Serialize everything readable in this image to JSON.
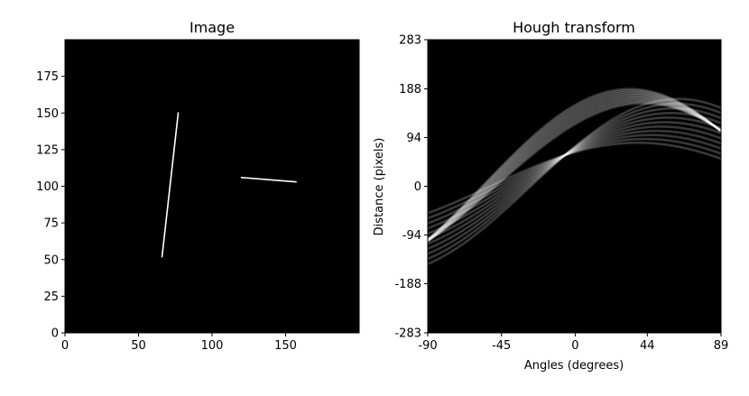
{
  "chart_data": [
    {
      "type": "image",
      "title": "Image",
      "xlabel": "",
      "ylabel": "",
      "xlim": [
        0,
        200
      ],
      "ylim": [
        0,
        200
      ],
      "xticks": [
        0,
        50,
        100,
        150
      ],
      "yticks": [
        0,
        25,
        50,
        75,
        100,
        125,
        150,
        175
      ],
      "background": "#000000",
      "foreground": "#ffffff",
      "segments": [
        {
          "name": "steep-line",
          "x1": 66,
          "y1": 52,
          "x2": 77,
          "y2": 150
        },
        {
          "name": "flat-line",
          "x1": 120,
          "y1": 106,
          "x2": 157,
          "y2": 103
        }
      ]
    },
    {
      "type": "heatmap",
      "title": "Hough transform",
      "xlabel": "Angles (degrees)",
      "ylabel": "Distance (pixels)",
      "xlim": [
        -90,
        89
      ],
      "ylim": [
        -283,
        283
      ],
      "xticks": [
        -90,
        -45,
        0,
        44,
        89
      ],
      "yticks": [
        -283,
        -188,
        -94,
        0,
        94,
        188,
        283
      ],
      "background": "#000000",
      "bands": [
        {
          "name": "steep-line-band",
          "x_from": 66,
          "x_to": 77,
          "y_from": 52,
          "y_to": 150
        },
        {
          "name": "flat-line-band",
          "x_from": 120,
          "x_to": 157,
          "y_from": 106,
          "y_to": 103
        }
      ],
      "curves_per_band": 11
    }
  ]
}
